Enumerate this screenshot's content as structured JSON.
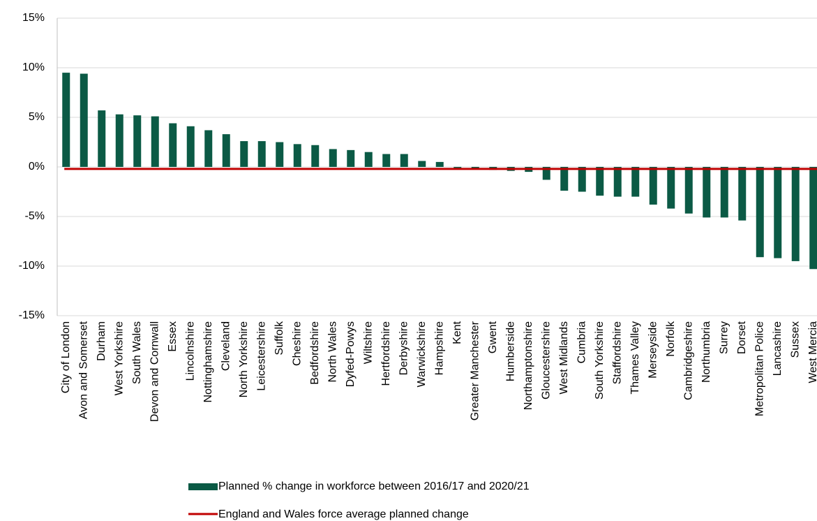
{
  "chart_data": {
    "type": "bar",
    "categories": [
      "City of London",
      "Avon and Somerset",
      "Durham",
      "West Yorkshire",
      "South Wales",
      "Devon and Cornwall",
      "Essex",
      "Lincolnshire",
      "Nottinghamshire",
      "Cleveland",
      "North Yorkshire",
      "Leicestershire",
      "Suffolk",
      "Cheshire",
      "Bedfordshire",
      "North Wales",
      "Dyfed-Powys",
      "Wiltshire",
      "Hertfordshire",
      "Derbyshire",
      "Warwickshire",
      "Hampshire",
      "Kent",
      "Greater Manchester",
      "Gwent",
      "Humberside",
      "Northamptonshire",
      "Gloucestershire",
      "West Midlands",
      "Cumbria",
      "South Yorkshire",
      "Staffordshire",
      "Thames Valley",
      "Merseyside",
      "Norfolk",
      "Cambridgeshire",
      "Northumbria",
      "Surrey",
      "Dorset",
      "Metropolitan Police",
      "Lancashire",
      "Sussex",
      "West Mercia"
    ],
    "series": [
      {
        "name": "Planned % change in workforce between 2016/17 and 2020/21",
        "color": "#0b5a45",
        "values": [
          9.5,
          9.4,
          5.7,
          5.3,
          5.2,
          5.1,
          4.4,
          4.1,
          3.7,
          3.3,
          2.6,
          2.6,
          2.5,
          2.3,
          2.2,
          1.8,
          1.7,
          1.5,
          1.3,
          1.3,
          0.6,
          0.5,
          -0.1,
          -0.2,
          -0.3,
          -0.4,
          -0.5,
          -1.3,
          -2.4,
          -2.5,
          -2.9,
          -3.0,
          -3.0,
          -3.8,
          -4.2,
          -4.7,
          -5.1,
          -5.1,
          -5.4,
          -9.1,
          -9.2,
          -9.5,
          -10.3
        ]
      }
    ],
    "reference_line": {
      "name": "England and Wales force average planned change",
      "value": -0.2,
      "color": "#c00000"
    },
    "ylim": [
      -15,
      15
    ],
    "yticks": [
      {
        "value": -15,
        "label": "-15%"
      },
      {
        "value": -10,
        "label": "-10%"
      },
      {
        "value": -5,
        "label": "-5%"
      },
      {
        "value": 0,
        "label": "0%"
      },
      {
        "value": 5,
        "label": "5%"
      },
      {
        "value": 10,
        "label": "10%"
      },
      {
        "value": 15,
        "label": "15%"
      }
    ],
    "grid": true
  }
}
